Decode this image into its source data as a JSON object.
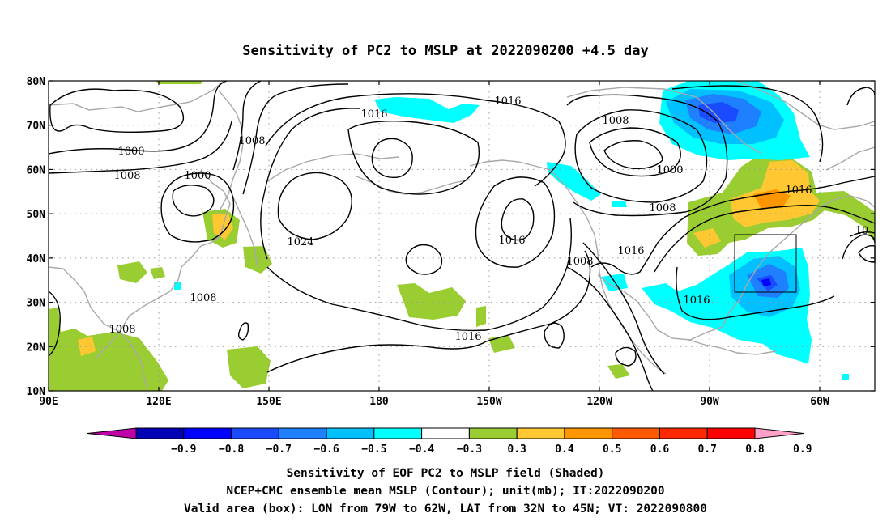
{
  "title": "Sensitivity of PC2 to MSLP at 2022090200 +4.5 day",
  "map": {
    "lat_ticks": [
      "80N",
      "70N",
      "60N",
      "50N",
      "40N",
      "30N",
      "20N",
      "10N"
    ],
    "lon_ticks": [
      "90E",
      "120E",
      "150E",
      "180",
      "150W",
      "120W",
      "90W",
      "60W"
    ],
    "contour_labels": [
      "1016",
      "1016",
      "1008",
      "1008",
      "1000",
      "1000",
      "1000",
      "1008",
      "1024",
      "1016",
      "1008",
      "1016",
      "1016",
      "1008",
      "1016",
      "1016",
      "1008",
      "1008",
      "10"
    ],
    "box": {
      "lon_from": "79W",
      "lon_to": "62W",
      "lat_from": "32N",
      "lat_to": "45N"
    }
  },
  "colorbar": {
    "labels": [
      "−0.9",
      "−0.8",
      "−0.7",
      "−0.6",
      "−0.5",
      "−0.4",
      "−0.3",
      "0.3",
      "0.4",
      "0.5",
      "0.6",
      "0.7",
      "0.8",
      "0.9"
    ],
    "colors": [
      "#c000a8",
      "#0000b4",
      "#0000ff",
      "#1a4bff",
      "#1f80ff",
      "#00c0ff",
      "#00ffff",
      "#ffffff",
      "#9acd32",
      "#ffc832",
      "#ff9600",
      "#ff5a00",
      "#ff2800",
      "#ff0000",
      "#ffa0c8"
    ]
  },
  "caption": {
    "line1": "Sensitivity of EOF PC2 to MSLP field (Shaded)",
    "line2": "NCEP+CMC ensemble mean MSLP (Contour); unit(mb); IT:2022090200",
    "line3": "Valid area (box): LON from 79W to 62W, LAT from 32N to 45N; VT: 2022090800"
  }
}
